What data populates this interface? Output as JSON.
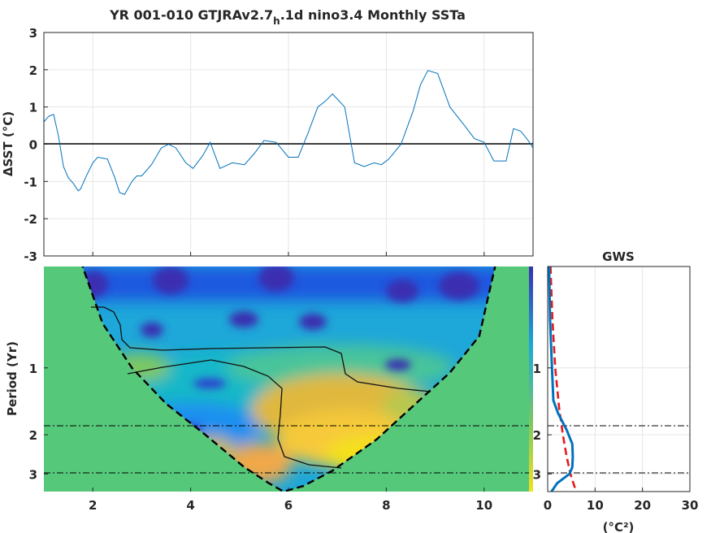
{
  "figure": {
    "title_main": "YR 001-010 GTJRAv2.7",
    "title_sub": "h",
    "title_rest": ".1d nino3.4 Monthly SSTa"
  },
  "colors": {
    "series_line": "#0072bd",
    "zero_line": "#000000",
    "gws_line": "#0072bd",
    "significance_line": "#e41a1c",
    "coi_fill": "#55c87a",
    "grid": "#e6e6e6"
  },
  "chart_data": [
    {
      "type": "line",
      "panel": "time-series",
      "title": "YR 001-010 GTJRAv2.7h.1d nino3.4 Monthly SSTa",
      "xlabel": "",
      "ylabel": "ΔSST (°C)",
      "xlim": [
        1,
        11
      ],
      "ylim": [
        -3,
        3
      ],
      "xticks": [
        "2",
        "4",
        "6",
        "8",
        "10"
      ],
      "yticks": [
        "-3",
        "-2",
        "-1",
        "0",
        "1",
        "2",
        "3"
      ],
      "grid": true,
      "series": [
        {
          "x": [
            1.0,
            1.1,
            1.2,
            1.3,
            1.4,
            1.5,
            1.6,
            1.7,
            1.75,
            1.85,
            2.0,
            2.1,
            2.3,
            2.45,
            2.55,
            2.65,
            2.8,
            2.9,
            3.0,
            3.2,
            3.4,
            3.55,
            3.7,
            3.9,
            4.05,
            4.25,
            4.4,
            4.6,
            4.85,
            5.1,
            5.3,
            5.5,
            5.75,
            6.0,
            6.2,
            6.4,
            6.6,
            6.75,
            6.9,
            7.15,
            7.35,
            7.55,
            7.75,
            7.9,
            8.05,
            8.3,
            8.55,
            8.7,
            8.85,
            9.05,
            9.3,
            9.6,
            9.8,
            10.0,
            10.2,
            10.45,
            10.6,
            10.75,
            10.9,
            11.0
          ],
          "y": [
            0.6,
            0.75,
            0.8,
            0.2,
            -0.6,
            -0.9,
            -1.05,
            -1.25,
            -1.2,
            -0.9,
            -0.5,
            -0.35,
            -0.4,
            -0.9,
            -1.3,
            -1.35,
            -1.0,
            -0.85,
            -0.85,
            -0.55,
            -0.1,
            0.0,
            -0.1,
            -0.5,
            -0.65,
            -0.3,
            0.05,
            -0.65,
            -0.5,
            -0.55,
            -0.25,
            0.1,
            0.05,
            -0.35,
            -0.35,
            0.3,
            1.0,
            1.15,
            1.35,
            1.0,
            -0.5,
            -0.6,
            -0.5,
            -0.55,
            -0.4,
            0.0,
            0.9,
            1.6,
            1.98,
            1.9,
            1.0,
            0.5,
            0.15,
            0.05,
            -0.45,
            -0.45,
            0.42,
            0.35,
            0.1,
            -0.1
          ]
        }
      ]
    },
    {
      "type": "heatmap",
      "panel": "wavelet-power-spectrum",
      "title": "",
      "xlabel": "",
      "ylabel": "Period (Yr)",
      "xlim": [
        1,
        11
      ],
      "ylim": [
        0.35,
        3.6
      ],
      "yscale": "log",
      "xticks": [
        "2",
        "4",
        "6",
        "8",
        "10"
      ],
      "yticks": [
        "1",
        "2",
        "3"
      ],
      "reference_periods": [
        2,
        3
      ],
      "cone_of_influence": {
        "x": [
          1.75,
          2.2,
          2.8,
          3.5,
          4.3,
          5.1,
          5.6,
          5.9,
          6.3,
          6.9,
          7.8,
          8.6,
          9.3,
          9.9,
          10.25
        ],
        "period": [
          0.33,
          0.63,
          1.0,
          1.45,
          2.0,
          2.8,
          3.3,
          3.6,
          3.4,
          2.9,
          2.1,
          1.45,
          1.05,
          0.72,
          0.33
        ]
      },
      "colormap": "parula",
      "coi_fill": "green"
    },
    {
      "type": "line",
      "panel": "global-wavelet-spectrum",
      "title": "GWS",
      "xlabel": "(°C²)",
      "ylabel": "",
      "xlim": [
        0,
        30
      ],
      "xticks": [
        "0",
        "10",
        "20",
        "30"
      ],
      "yticks": [
        "1",
        "2",
        "3"
      ],
      "series": [
        {
          "period": [
            0.35,
            0.6,
            1.0,
            1.4,
            1.6,
            1.9,
            2.2,
            2.5,
            2.8,
            3.0,
            3.3,
            3.6
          ],
          "power": [
            0.3,
            0.5,
            0.9,
            1.2,
            2.2,
            4.0,
            5.2,
            5.3,
            5.2,
            4.6,
            2.0,
            0.8
          ]
        },
        {
          "period": [
            0.35,
            0.6,
            1.0,
            1.5,
            2.0,
            2.5,
            3.0,
            3.6
          ],
          "power": [
            0.6,
            1.0,
            1.6,
            2.4,
            3.2,
            4.0,
            4.8,
            6.0
          ]
        }
      ]
    }
  ]
}
